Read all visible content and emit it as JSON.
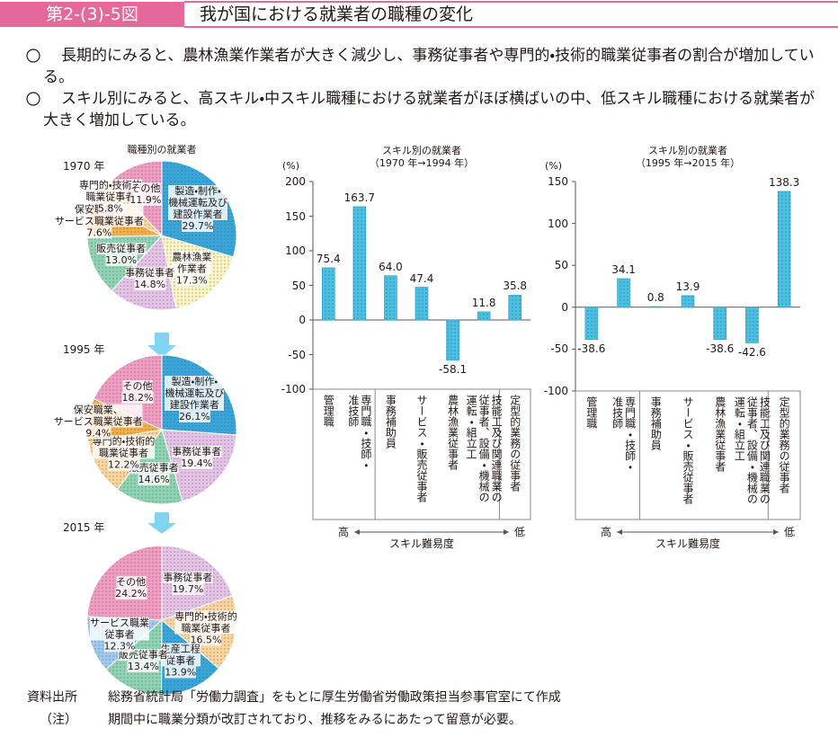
{
  "header": {
    "figure_number": "第2-(3)-5図",
    "title": "我が国における就業者の職種の変化"
  },
  "bullets": [
    "長期的にみると、農林漁業作業者が大きく減少し、事務従事者や専門的・技術的職業従事者の割合が増加している。",
    "スキル別にみると、高スキル・中スキル職種における就業者がほぼ横ばいの中、低スキル職種における就業者が大きく増加している。"
  ],
  "chart_data": [
    {
      "type": "pie",
      "title": "職種別の就業者",
      "subtitle": "1970 年",
      "categories": [
        "製造・制作・\n機械運転及び\n建設作業者",
        "農林漁業\n作業者",
        "事務従事者",
        "販売従事者",
        "保安職業、\nサービス職業従事者",
        "専門的・技術的\n職業従事者",
        "その他"
      ],
      "values": [
        29.7,
        17.3,
        14.8,
        13.0,
        7.6,
        5.8,
        11.9
      ],
      "value_labels": [
        "29.7%",
        "17.3%",
        "14.8%",
        "13.0%",
        "7.6%",
        "5.8%",
        "11.9%"
      ],
      "colors": [
        "#3aa6d8",
        "#fbf3c0",
        "#e6c3e4",
        "#8fd3b0",
        "#f6ad45",
        "#fbd49a",
        "#f29cc0"
      ]
    },
    {
      "type": "pie",
      "subtitle": "1995 年",
      "categories": [
        "製造・制作・\n機械運転及び\n建設作業者",
        "事務従事者",
        "販売従事者",
        "専門的・技術的\n職業従事者",
        "保安職業、\nサービス職業従事者",
        "その他"
      ],
      "values": [
        26.1,
        19.4,
        14.6,
        12.2,
        9.4,
        18.2
      ],
      "value_labels": [
        "26.1%",
        "19.4%",
        "14.6%",
        "12.2%",
        "9.4%",
        "18.2%"
      ],
      "colors": [
        "#3aa6d8",
        "#e6c3e4",
        "#8fd3b0",
        "#fbd49a",
        "#f6ad45",
        "#f29cc0"
      ]
    },
    {
      "type": "pie",
      "subtitle": "2015 年",
      "categories": [
        "事務従事者",
        "専門的・技術的\n職業従事者",
        "生産工程\n従事者",
        "販売従事者",
        "サービス職業\n従事者",
        "その他"
      ],
      "values": [
        19.7,
        16.5,
        13.9,
        13.4,
        12.3,
        24.2
      ],
      "value_labels": [
        "19.7%",
        "16.5%",
        "13.9%",
        "13.4%",
        "12.3%",
        "24.2%"
      ],
      "colors": [
        "#e6c3e4",
        "#fbd49a",
        "#3aa6d8",
        "#8fd3b0",
        "#9fc9ee",
        "#f29cc0"
      ]
    },
    {
      "type": "bar",
      "title": "スキル別の就業者",
      "subtitle": "（1970 年→1994 年）",
      "y_label": "(%)",
      "categories": [
        "管理職",
        "専門職・技師・\n准技師",
        "事務補助員",
        "サービス・販売従事者",
        "農林漁業従事者",
        "技能工及び関連職業の\n従事者、設備・機械の\n運転・組立工",
        "定型的業務の従事者"
      ],
      "values": [
        75.4,
        163.7,
        64.0,
        47.4,
        -58.1,
        11.8,
        35.8
      ],
      "value_labels": [
        "75.4",
        "163.7",
        "64.0",
        "47.4",
        "-58.1",
        "11.8",
        "35.8"
      ],
      "color": "#4cc0e0",
      "ylim": [
        -100,
        200
      ],
      "yticks": [
        -100,
        -50,
        0,
        50,
        100,
        150,
        200
      ],
      "x_label": "スキル難易度",
      "x_label_left": "高",
      "x_label_right": "低"
    },
    {
      "type": "bar",
      "title": "スキル別の就業者",
      "subtitle": "（1995 年→2015 年）",
      "y_label": "(%)",
      "categories": [
        "管理職",
        "専門職・技師・\n准技師",
        "事務補助員",
        "サービス・販売従事者",
        "農林漁業従事者",
        "技能工及び関連職業の\n従事者、設備・機械の\n運転・組立工",
        "定型的業務の従事者"
      ],
      "values": [
        -38.6,
        34.1,
        0.8,
        13.9,
        -38.6,
        -42.6,
        138.3
      ],
      "value_labels": [
        "-38.6",
        "34.1",
        "0.8",
        "13.9",
        "-38.6",
        "-42.6",
        "138.3"
      ],
      "color": "#4cc0e0",
      "ylim": [
        -100,
        150
      ],
      "yticks": [
        -100,
        -50,
        0,
        50,
        100,
        150
      ],
      "x_label": "スキル難易度",
      "x_label_left": "高",
      "x_label_right": "低"
    }
  ],
  "notes": [
    {
      "label": "資料出所",
      "text": "総務省統計局「労働力調査」をもとに厚生労働省労働政策担当参事官室にて作成"
    },
    {
      "label": "（注）",
      "text": "期間中に職業分類が改訂されており、推移をみるにあたって留意が必要。"
    }
  ]
}
